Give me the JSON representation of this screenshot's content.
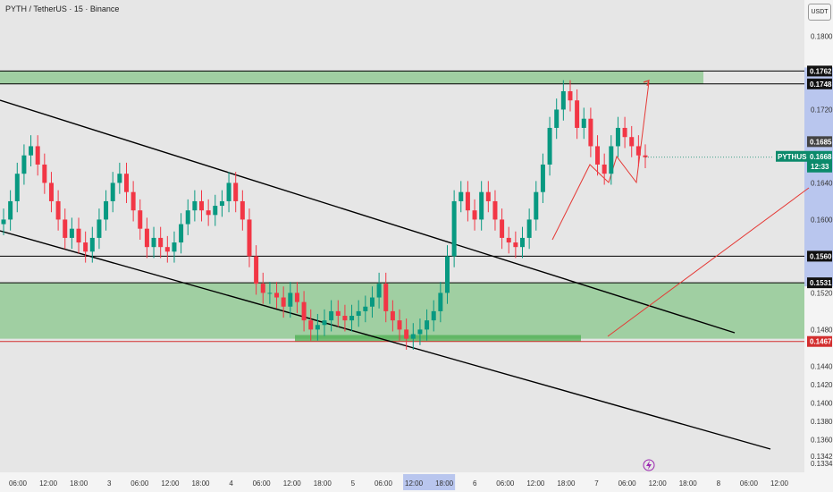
{
  "header": {
    "title": "PYTH / TetherUS · 15 · Binance",
    "currency_button": "USDT"
  },
  "chart_data": {
    "type": "candlestick",
    "symbol": "PYTHUSDT",
    "ylim": [
      0.1334,
      0.182
    ],
    "price_ticks": [
      "0.1800",
      "0.1720",
      "0.1640",
      "0.1600",
      "0.1520",
      "0.1480",
      "0.1440",
      "0.1420",
      "0.1400",
      "0.1380",
      "0.1360",
      "0.1342",
      "0.1334"
    ],
    "time_ticks": [
      "06:00",
      "12:00",
      "18:00",
      "3",
      "06:00",
      "12:00",
      "18:00",
      "4",
      "06:00",
      "12:00",
      "18:00",
      "5",
      "06:00",
      "12:00",
      "18:00",
      "6",
      "06:00",
      "12:00",
      "18:00",
      "7",
      "06:00",
      "12:00",
      "18:00",
      "8",
      "06:00",
      "12:00"
    ],
    "highlighted_time_range": [
      "12:00",
      "18:00"
    ],
    "horizontal_levels": [
      {
        "price": 0.1762,
        "label": "0.1762",
        "color": "#000000"
      },
      {
        "price": 0.1748,
        "label": "0.1748",
        "color": "#000000"
      },
      {
        "price": 0.156,
        "label": "0.1560",
        "color": "#000000"
      },
      {
        "price": 0.1531,
        "label": "0.1531",
        "color": "#000000"
      },
      {
        "price": 0.1467,
        "label": "0.1467",
        "color": "#d32f2f"
      }
    ],
    "price_tags": [
      {
        "price": 0.1685,
        "label": "0.1685",
        "color": "#444444"
      },
      {
        "price": 0.1668,
        "label": "PYTHUSDT",
        "sub": "0.1668",
        "countdown": "12:33",
        "color": "#0b8a6b"
      }
    ],
    "zones": [
      {
        "from": 0.1748,
        "to": 0.1762,
        "color": "#66bb6a"
      },
      {
        "from": 0.147,
        "to": 0.1531,
        "color": "#66bb6a"
      },
      {
        "from": 0.1467,
        "to": 0.1474,
        "color": "#4caf50"
      }
    ],
    "trendlines_color": "#000000",
    "projection_color": "#e53935",
    "colors": {
      "up": "#089981",
      "down": "#f23645",
      "zone": "#66bb6a",
      "axis_highlight": "#b9c6ee"
    },
    "candles_close": [
      0.16,
      0.162,
      0.165,
      0.167,
      0.168,
      0.166,
      0.164,
      0.162,
      0.16,
      0.158,
      0.159,
      0.1575,
      0.1565,
      0.158,
      0.16,
      0.162,
      0.164,
      0.165,
      0.163,
      0.161,
      0.159,
      0.157,
      0.158,
      0.157,
      0.1565,
      0.1575,
      0.1595,
      0.161,
      0.162,
      0.161,
      0.1605,
      0.1615,
      0.162,
      0.164,
      0.162,
      0.16,
      0.156,
      0.153,
      0.152,
      0.152,
      0.1515,
      0.1505,
      0.152,
      0.151,
      0.149,
      0.148,
      0.1485,
      0.149,
      0.15,
      0.1495,
      0.149,
      0.1495,
      0.15,
      0.1505,
      0.1515,
      0.153,
      0.15,
      0.149,
      0.148,
      0.147,
      0.1475,
      0.148,
      0.149,
      0.15,
      0.152,
      0.156,
      0.162,
      0.163,
      0.161,
      0.16,
      0.163,
      0.162,
      0.16,
      0.158,
      0.1575,
      0.157,
      0.158,
      0.16,
      0.163,
      0.166,
      0.17,
      0.172,
      0.174,
      0.173,
      0.17,
      0.171,
      0.168,
      0.166,
      0.165,
      0.168,
      0.17,
      0.169,
      0.168,
      0.167,
      0.1668
    ]
  }
}
